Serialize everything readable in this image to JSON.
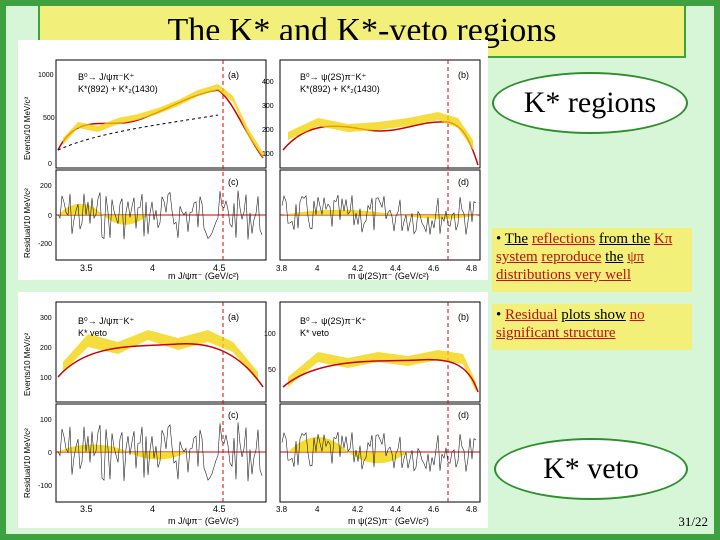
{
  "slide": {
    "title": "The K* and K*-veto regions",
    "page_number": "31/22",
    "oval_top": "K* regions",
    "oval_bottom": "K* veto",
    "bullet1": {
      "marker": "•",
      "w1": "The",
      "w2": "reflections",
      "w3": "from the",
      "w4": "Kπ system",
      "w5": "reproduce",
      "w6": "the",
      "w7": "ψπ distributions very well"
    },
    "bullet2": {
      "marker": "•",
      "w1": "Residual",
      "w2": "plots show",
      "w3": "no",
      "w4": "significant structure"
    }
  },
  "figures": {
    "top": {
      "a": {
        "tag": "(a)",
        "l1": "B⁰→ J/ψπ⁻K⁺",
        "l2": "K*(892) + K*₂(1430)"
      },
      "b": {
        "tag": "(b)",
        "l1": "B⁰→ ψ(2S)π⁻K⁺",
        "l2": "K*(892) + K*₂(1430)"
      },
      "c": {
        "tag": "(c)"
      },
      "d": {
        "tag": "(d)"
      },
      "ylabel_events": "Events/10 MeV/c²",
      "ylabel_resid": "Residual/10 MeV/c²",
      "left_y_ticks": [
        "1000",
        "500",
        "0"
      ],
      "right_y_ticks": [
        "400",
        "300",
        "200",
        "100"
      ],
      "resid_y_ticks": [
        "200",
        "0",
        "-200"
      ],
      "left_x_ticks": [
        "3.5",
        "4",
        "4.5"
      ],
      "right_x_ticks": [
        "3.8",
        "4",
        "4.2",
        "4.4",
        "4.6",
        "4.8"
      ],
      "left_xlabel": "m J/ψπ⁻ (GeV/c²)",
      "right_xlabel": "m ψ(2S)π⁻ (GeV/c²)"
    },
    "bottom": {
      "a": {
        "tag": "(a)",
        "l1": "B⁰→ J/ψπ⁻K⁺",
        "l2": "K* veto"
      },
      "b": {
        "tag": "(b)",
        "l1": "B⁰→ ψ(2S)π⁻K⁺",
        "l2": "K* veto"
      },
      "c": {
        "tag": "(c)"
      },
      "d": {
        "tag": "(d)"
      },
      "ylabel_events": "Events/10 MeV/c²",
      "ylabel_resid": "Residual/10 MeV/c²",
      "left_y_ticks": [
        "300",
        "200",
        "100"
      ],
      "right_y_ticks": [
        "100",
        "50"
      ],
      "resid_y_ticks": [
        "100",
        "0",
        "-100"
      ],
      "left_x_ticks": [
        "3.5",
        "4",
        "4.5"
      ],
      "right_x_ticks": [
        "3.8",
        "4",
        "4.2",
        "4.4",
        "4.6",
        "4.8"
      ],
      "left_xlabel": "m J/ψπ⁻ (GeV/c²)",
      "right_xlabel": "m ψ(2S)π⁻ (GeV/c²)"
    }
  }
}
